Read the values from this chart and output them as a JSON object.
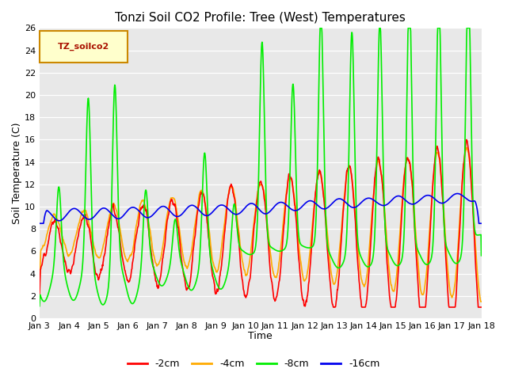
{
  "title": "Tonzi Soil CO2 Profile: Tree (West) Temperatures",
  "xlabel": "Time",
  "ylabel": "Soil Temperature (C)",
  "ylim": [
    0,
    26
  ],
  "yticks": [
    0,
    2,
    4,
    6,
    8,
    10,
    12,
    14,
    16,
    18,
    20,
    22,
    24,
    26
  ],
  "xtick_labels": [
    "Jan 3",
    "Jan 4",
    "Jan 5",
    "Jan 6",
    "Jan 7",
    "Jan 8",
    "Jan 9",
    "Jan 10",
    "Jan 11",
    "Jan 12",
    "Jan 13",
    "Jan 14",
    "Jan 15",
    "Jan 16",
    "Jan 17",
    "Jan 18"
  ],
  "legend_label": "TZ_soilco2",
  "legend_box_facecolor": "#ffffcc",
  "legend_box_edgecolor": "#cc8800",
  "line_colors": [
    "#ff0000",
    "#ffaa00",
    "#00ee00",
    "#0000ee"
  ],
  "line_labels": [
    "-2cm",
    "-4cm",
    "-8cm",
    "-16cm"
  ],
  "plot_bg_color": "#e8e8e8",
  "grid_color": "#ffffff",
  "title_fontsize": 11,
  "axis_label_fontsize": 9,
  "tick_fontsize": 8,
  "legend_fontsize": 9,
  "line_width": 1.2
}
